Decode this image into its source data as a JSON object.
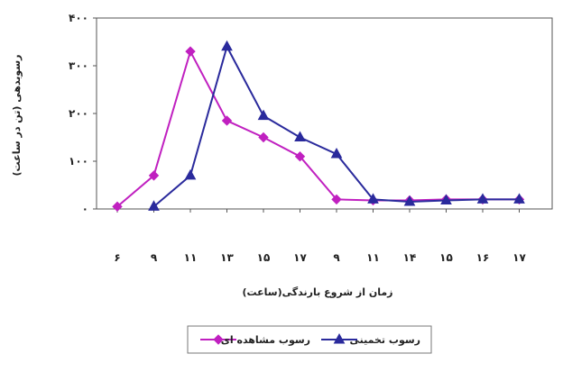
{
  "chart_data": {
    "type": "line",
    "categories": [
      "۶",
      "۹",
      "۱۱",
      "۱۳",
      "۱۵",
      "۱۷",
      "۹",
      "۱۱",
      "۱۴",
      "۱۵",
      "۱۶",
      "۱۷"
    ],
    "y_tick_labels": [
      "۰",
      "۱۰۰",
      "۲۰۰",
      "۳۰۰",
      "۴۰۰"
    ],
    "ylim": [
      0,
      400
    ],
    "xlabel": "(زمان از شروع بارندگی(ساعت",
    "ylabel": "(رسوبدهی (تن در ساعت",
    "grid": false,
    "legend_position": "bottom",
    "series": [
      {
        "name": "رسوب مشاهده ای",
        "color": "#c020c0",
        "marker": "diamond",
        "values": [
          5,
          70,
          330,
          185,
          150,
          110,
          20,
          18,
          18,
          20,
          20,
          20
        ]
      },
      {
        "name": "رسوب تخمینی",
        "color": "#2a2a9c",
        "marker": "triangle",
        "values": [
          null,
          5,
          70,
          340,
          195,
          150,
          115,
          20,
          15,
          18,
          20,
          20
        ]
      }
    ]
  }
}
